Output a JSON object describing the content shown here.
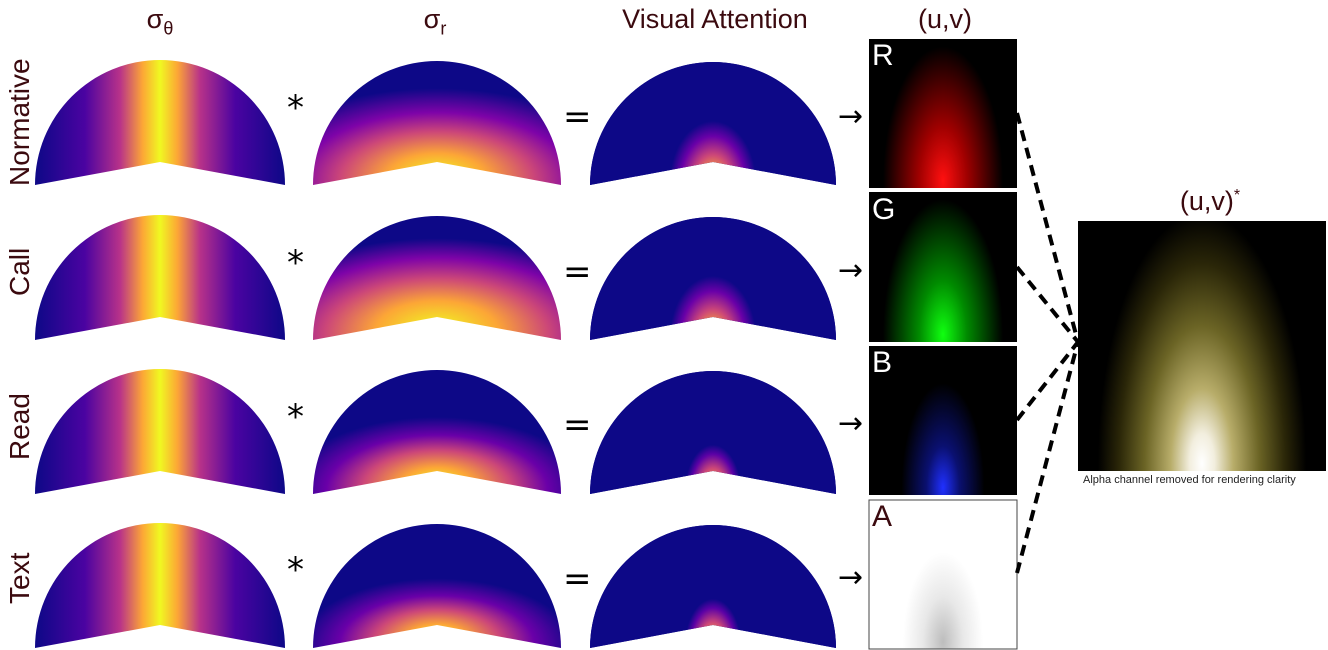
{
  "columns": {
    "sigma_theta": {
      "symbol": "σ",
      "sub": "θ"
    },
    "sigma_r": {
      "symbol": "σ",
      "sub": "r"
    },
    "visual_attention": "Visual Attention",
    "uv": "(u,v)",
    "uv_star": {
      "text": "(u,v)",
      "sup": "*"
    }
  },
  "rows": [
    "Normative",
    "Call",
    "Read",
    "Text"
  ],
  "operators": {
    "multiply": "*",
    "equals": "=",
    "arrow": "→"
  },
  "channels": [
    {
      "letter": "R",
      "color": "#ff1010",
      "letter_color": "#ffffff"
    },
    {
      "letter": "G",
      "color": "#10ff10",
      "letter_color": "#ffffff"
    },
    {
      "letter": "B",
      "color": "#2030ff",
      "letter_color": "#ffffff"
    },
    {
      "letter": "A",
      "color": "#bdbdbd",
      "letter_color": "#3b0a0f"
    }
  ],
  "combined_note": "Alpha channel removed for rendering clarity",
  "colors": {
    "plasma_dark": "#0d0887",
    "plasma_purple": "#7e03a8",
    "plasma_orange": "#f89540",
    "plasma_yellow": "#f0f921",
    "label_text": "#3b0a0f"
  }
}
